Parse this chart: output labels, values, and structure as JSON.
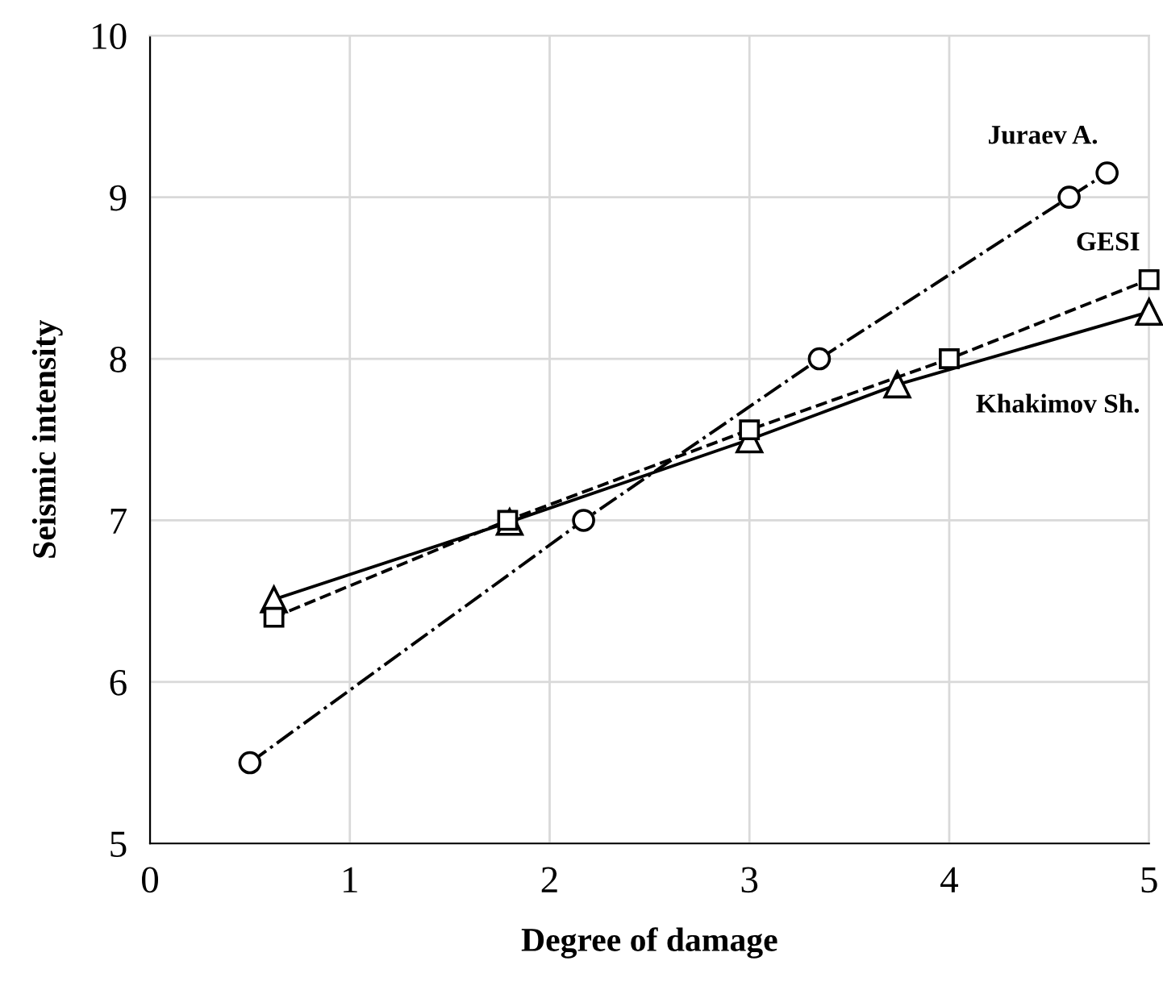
{
  "chart_data": {
    "type": "line",
    "xlabel": "Degree of damage",
    "ylabel": "Seismic intensity",
    "xlim": [
      0,
      5
    ],
    "ylim": [
      5,
      10
    ],
    "xticks": [
      0,
      1,
      2,
      3,
      4,
      5
    ],
    "yticks": [
      5,
      6,
      7,
      8,
      9,
      10
    ],
    "grid": true,
    "legend": false,
    "series": [
      {
        "name": "Juraev A.",
        "color": "#000000",
        "marker": "circle",
        "line_style": "dashdot",
        "x": [
          0.5,
          2.17,
          3.35,
          4.6,
          4.79
        ],
        "values": [
          5.5,
          7.0,
          8.0,
          9.0,
          9.15
        ]
      },
      {
        "name": "GESI",
        "color": "#000000",
        "marker": "square",
        "line_style": "dashed",
        "x": [
          0.62,
          1.79,
          3.0,
          4.0,
          5.0
        ],
        "values": [
          6.4,
          7.0,
          7.56,
          8.0,
          8.49
        ]
      },
      {
        "name": "Khakimov Sh.",
        "color": "#000000",
        "marker": "triangle",
        "line_style": "solid",
        "x": [
          0.62,
          1.8,
          3.0,
          3.74,
          5.0
        ],
        "values": [
          6.51,
          6.99,
          7.5,
          7.84,
          8.29
        ]
      }
    ]
  }
}
